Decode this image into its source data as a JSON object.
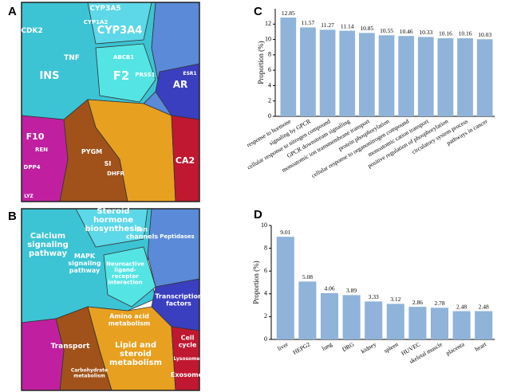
{
  "panels": [
    "A",
    "B",
    "C",
    "D"
  ],
  "voronoi": [
    {
      "labels": [
        [
          "CYP3A5"
        ],
        [
          "CYP3A4"
        ],
        [
          "CDK2"
        ],
        [
          "CYP1A2"
        ],
        [
          "TNF"
        ],
        [
          "ABCB1"
        ],
        [
          "F2"
        ],
        [
          "PRSS1"
        ],
        [
          "INS"
        ],
        [
          "AR"
        ],
        [
          "ESR1"
        ],
        [
          "F10"
        ],
        [
          "REN"
        ],
        [
          "DPP4"
        ],
        [
          "PYGM"
        ],
        [
          "SI"
        ],
        [
          "DHFR"
        ],
        [
          "CA2"
        ],
        [
          "LYZ"
        ]
      ]
    },
    {
      "labels": [
        [
          "Steroid",
          "hormone",
          "biosynthesis"
        ],
        [
          "Ion",
          "channels"
        ],
        [
          "Calcium",
          "signaling",
          "pathway"
        ],
        [
          "MAPK",
          "signaling",
          "pathway"
        ],
        [
          "Peptidases"
        ],
        [
          "Neuroactive",
          "ligand-",
          "receptor",
          "interaction"
        ],
        [
          "Transcription",
          "factors"
        ],
        [
          "Amino acid",
          "metabolism"
        ],
        [
          "Cell",
          "cycle"
        ],
        [
          "Transport"
        ],
        [
          "Lipid and",
          "steroid",
          "metabolism"
        ],
        [
          "Carbohydrate",
          "metabolism"
        ],
        [
          "Lysosome"
        ],
        [
          "Exosome"
        ]
      ]
    }
  ],
  "chart_data": [
    {
      "type": "bar",
      "ylabel": "Proportion (%)",
      "color": "#8fb3d9",
      "categories": [
        "response to hormone",
        "signaling by GPCR",
        "cellular response to nitrogen compound",
        "GPCR downstream signalling",
        "monoatomic ion transmembrane transport",
        "protein phosphorylation",
        "cellular response to organonitrogen compound",
        "monoatomic cation transport",
        "positive regulation of phosphorylation",
        "circulatory system process",
        "pathways in cancer"
      ],
      "values": [
        12.85,
        11.57,
        11.27,
        11.14,
        10.85,
        10.55,
        10.46,
        10.33,
        10.16,
        10.16,
        10.03
      ],
      "ylim": [
        0,
        14
      ],
      "yticks": [
        0,
        2,
        4,
        6,
        8,
        10,
        12
      ]
    },
    {
      "type": "bar",
      "ylabel": "Proportion (%)",
      "color": "#8fb3d9",
      "categories": [
        "liver",
        "HEPG2",
        "lung",
        "DRG",
        "kidney",
        "spleen",
        "HUVEC",
        "skeletal muscle",
        "placenta",
        "heart"
      ],
      "values": [
        9.01,
        5.08,
        4.06,
        3.89,
        3.33,
        3.12,
        2.86,
        2.78,
        2.48,
        2.48
      ],
      "ylim": [
        0,
        10
      ],
      "yticks": [
        0,
        2,
        4,
        6,
        8,
        10
      ]
    }
  ]
}
